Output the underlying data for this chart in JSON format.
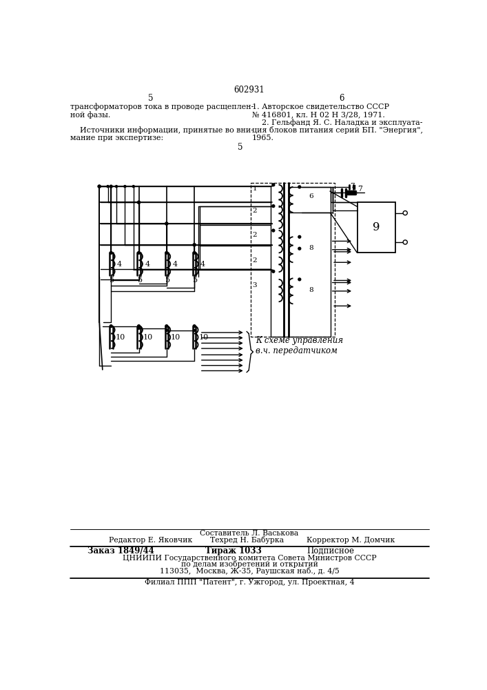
{
  "page_number_center": "602931",
  "page_left": "5",
  "page_right": "6",
  "text_left_col": [
    "трансформаторов тока в проводе расщеплен-",
    "ной фазы.",
    "",
    "    Источники информации, принятые во вни-",
    "мание при экспертизе:"
  ],
  "text_right_col": [
    "1. Авторское свидетельство СССР",
    "№ 416801, кл. Н 02 Н 3/28, 1971.",
    "    2. Гельфанд Я. С. Наладка и эксплуата-",
    "ция блоков питания серий БП. \"Энергия\",",
    "1965."
  ],
  "ref_number_5": "5",
  "label_ctrl": "К схеме управления\nв.ч. передатчиком",
  "footer_sestavitel": "Составитель Л. Васькова",
  "footer_editor": "Редактор Е. Яковчик",
  "footer_tehred": "Техред Н. Бабурка",
  "footer_korrektor": "Корректор М. Домчик",
  "footer_zakaz": "Заказ 1849/44",
  "footer_tirazh": "Тираж 1033",
  "footer_podpisnoe": "Подписное",
  "footer_tsnipi": "ЦНИИПИ Государственного комитета Совета Министров СССР",
  "footer_po_delam": "по делам изобретений и открытий",
  "footer_address": "113035,  Москва, Ж-35, Раушская наб., д. 4/5",
  "footer_filial": "Филиал ППП \"Патент\", г. Ужгород, ул. Проектная, 4",
  "bg_color": "#ffffff",
  "line_color": "#000000",
  "text_color": "#000000"
}
